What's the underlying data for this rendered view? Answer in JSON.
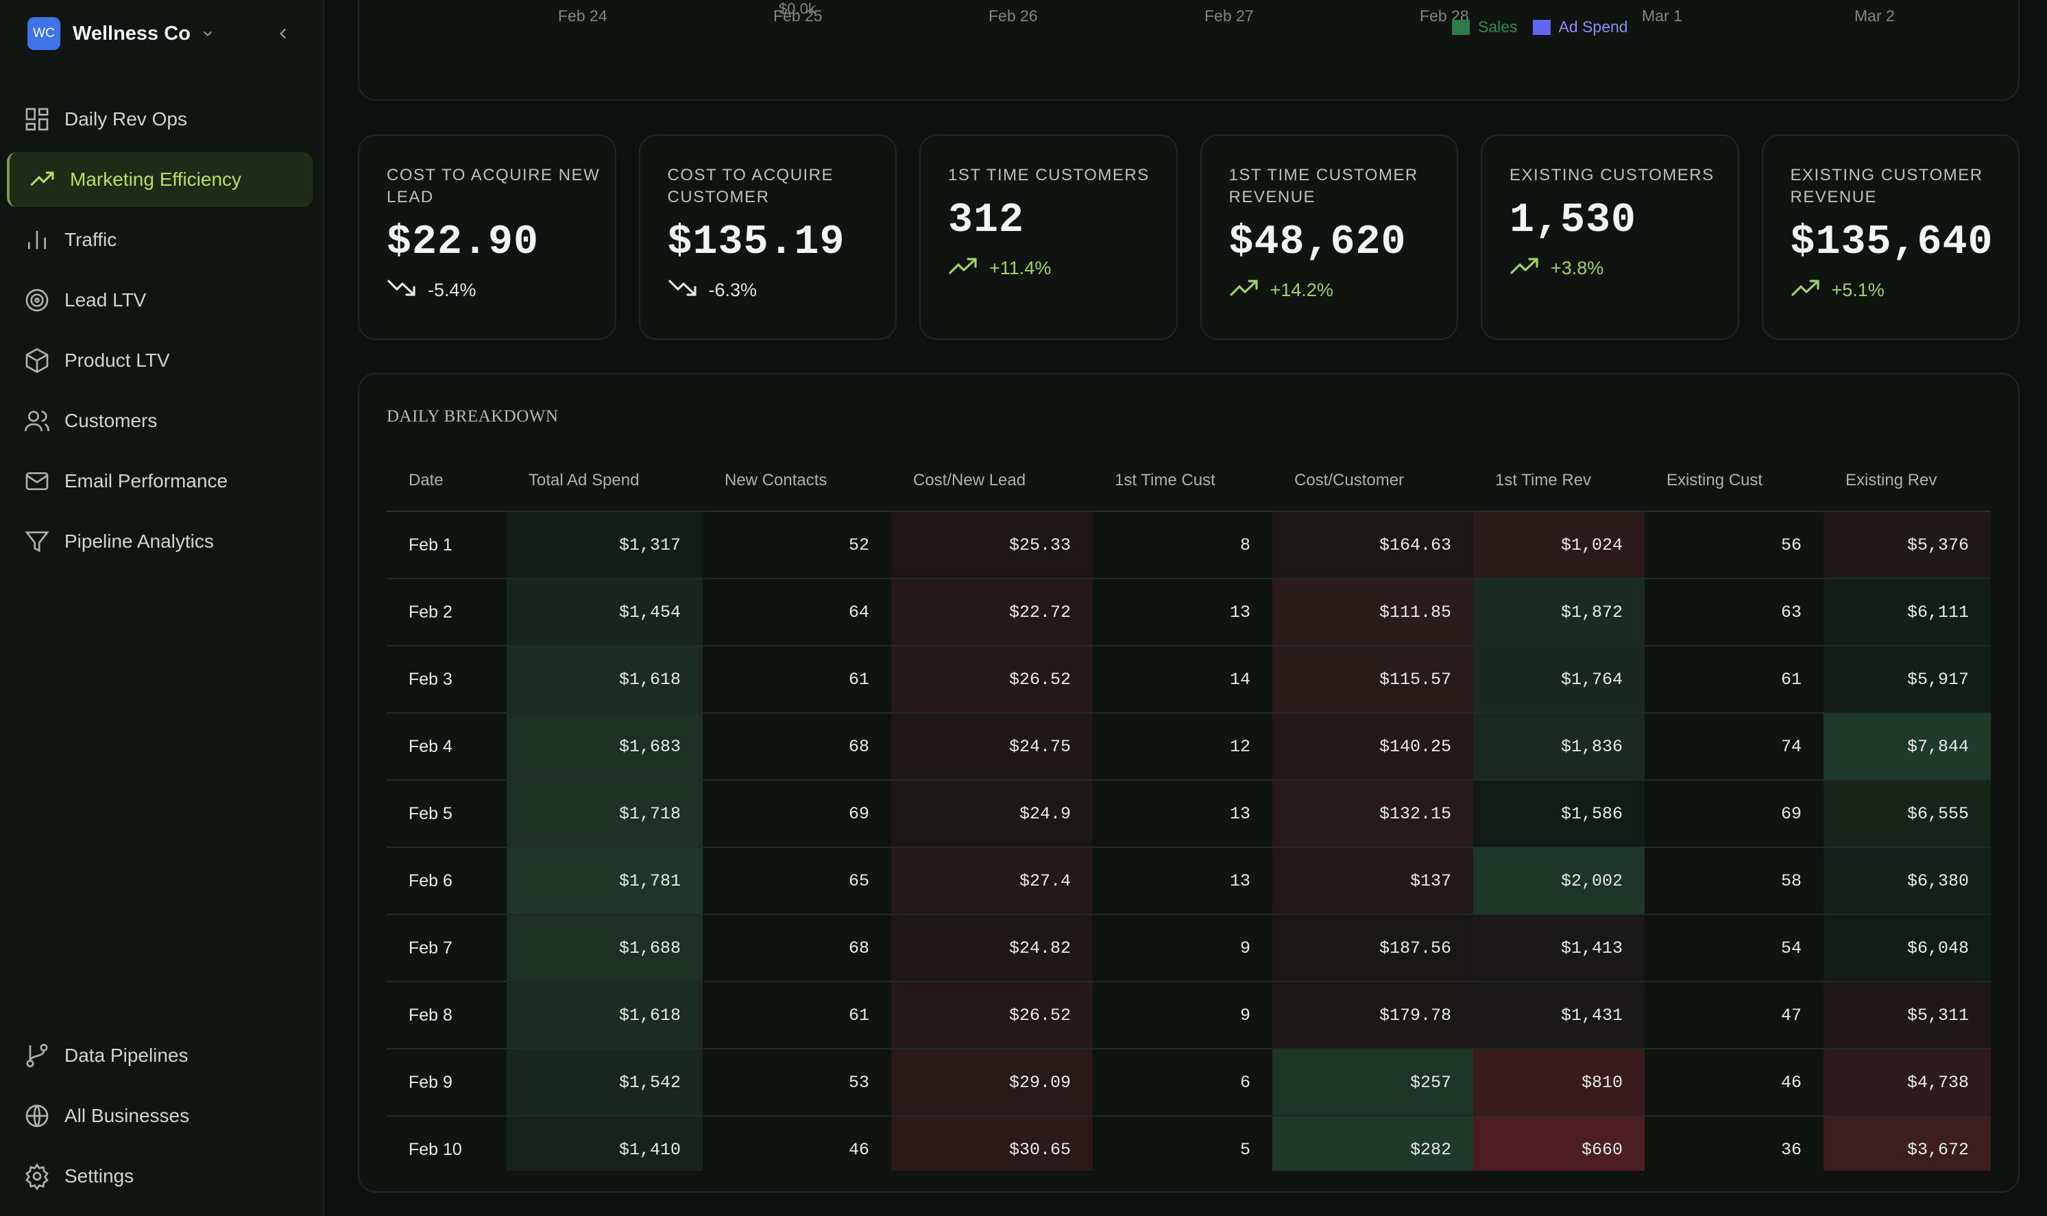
{
  "brand": {
    "initials": "WC",
    "name": "Wellness Co"
  },
  "nav": {
    "items": [
      {
        "label": "Daily Rev Ops",
        "icon": "dashboard-grid-icon"
      },
      {
        "label": "Marketing Efficiency",
        "icon": "trending-up-icon",
        "active": true
      },
      {
        "label": "Traffic",
        "icon": "bar-chart-icon"
      },
      {
        "label": "Lead LTV",
        "icon": "target-icon"
      },
      {
        "label": "Product LTV",
        "icon": "box-icon"
      },
      {
        "label": "Customers",
        "icon": "users-icon"
      },
      {
        "label": "Email Performance",
        "icon": "mail-icon"
      },
      {
        "label": "Pipeline Analytics",
        "icon": "filter-icon"
      }
    ],
    "bottom": [
      {
        "label": "Data Pipelines",
        "icon": "git-branch-icon"
      },
      {
        "label": "All Businesses",
        "icon": "globe-icon"
      },
      {
        "label": "Settings",
        "icon": "settings-gear-icon"
      }
    ]
  },
  "colors": {
    "accent": "#b4e05b",
    "positive": "#9fd36a",
    "negative": "#e4e8e5",
    "sales": "#2f7a4a",
    "ad_spend": "#6366f1"
  },
  "chart": {
    "y_tick_top": "$0.0k",
    "x_labels": [
      "Feb 24",
      "Feb 25",
      "Feb 26",
      "Feb 27",
      "Feb 28",
      "Mar 1",
      "Mar 2"
    ],
    "legend": [
      {
        "label": "Sales",
        "color": "#2f7a4a",
        "text_color": "#2f8a52"
      },
      {
        "label": "Ad Spend",
        "color": "#6366f1",
        "text_color": "#8b8df5"
      }
    ]
  },
  "kpis": [
    {
      "label": "Cost to Acquire New Lead",
      "value": "$22.90",
      "delta": "-5.4%",
      "direction": "down"
    },
    {
      "label": "Cost to Acquire Customer",
      "value": "$135.19",
      "delta": "-6.3%",
      "direction": "down"
    },
    {
      "label": "1st Time Customers",
      "value": "312",
      "delta": "+11.4%",
      "direction": "up"
    },
    {
      "label": "1st Time Customer Revenue",
      "value": "$48,620",
      "delta": "+14.2%",
      "direction": "up"
    },
    {
      "label": "Existing Customers",
      "value": "1,530",
      "delta": "+3.8%",
      "direction": "up"
    },
    {
      "label": "Existing Customer Revenue",
      "value": "$135,640",
      "delta": "+5.1%",
      "direction": "up"
    }
  ],
  "table": {
    "title": "DAILY BREAKDOWN",
    "columns": [
      "Date",
      "Total Ad Spend",
      "New Contacts",
      "Cost/New Lead",
      "1st Time Cust",
      "Cost/Customer",
      "1st Time Rev",
      "Existing Cust",
      "Existing Rev"
    ],
    "rows": [
      [
        "Feb 1",
        "$1,317",
        "52",
        "$25.33",
        "8",
        "$164.63",
        "$1,024",
        "56",
        "$5,376"
      ],
      [
        "Feb 2",
        "$1,454",
        "64",
        "$22.72",
        "13",
        "$111.85",
        "$1,872",
        "63",
        "$6,111"
      ],
      [
        "Feb 3",
        "$1,618",
        "61",
        "$26.52",
        "14",
        "$115.57",
        "$1,764",
        "61",
        "$5,917"
      ],
      [
        "Feb 4",
        "$1,683",
        "68",
        "$24.75",
        "12",
        "$140.25",
        "$1,836",
        "74",
        "$7,844"
      ],
      [
        "Feb 5",
        "$1,718",
        "69",
        "$24.9",
        "13",
        "$132.15",
        "$1,586",
        "69",
        "$6,555"
      ],
      [
        "Feb 6",
        "$1,781",
        "65",
        "$27.4",
        "13",
        "$137",
        "$2,002",
        "58",
        "$6,380"
      ],
      [
        "Feb 7",
        "$1,688",
        "68",
        "$24.82",
        "9",
        "$187.56",
        "$1,413",
        "54",
        "$6,048"
      ],
      [
        "Feb 8",
        "$1,618",
        "61",
        "$26.52",
        "9",
        "$179.78",
        "$1,431",
        "47",
        "$5,311"
      ],
      [
        "Feb 9",
        "$1,542",
        "53",
        "$29.09",
        "6",
        "$257",
        "$810",
        "46",
        "$4,738"
      ],
      [
        "Feb 10",
        "$1,410",
        "46",
        "$30.65",
        "5",
        "$282",
        "$660",
        "36",
        "$3,672"
      ]
    ],
    "heat": [
      [
        null,
        "#141c17",
        null,
        "#1c1616",
        null,
        "#1a1716",
        "#2a1a1a",
        null,
        "#1f1919"
      ],
      [
        null,
        "#18251d",
        null,
        "#241818",
        null,
        "#2c1b1b",
        "#1a2c22",
        null,
        "#141d18"
      ],
      [
        null,
        "#1b2c22",
        null,
        "#241818",
        null,
        "#2a1b1b",
        "#19291f",
        null,
        "#151d18"
      ],
      [
        null,
        "#1c3024",
        null,
        "#1f1818",
        null,
        "#231919",
        "#1a2a21",
        null,
        "#1f3a2a"
      ],
      [
        null,
        "#1d3125",
        null,
        "#1c1818",
        null,
        "#261a1a",
        "#131b16",
        null,
        "#172219"
      ],
      [
        null,
        "#1f3628",
        null,
        "#251818",
        null,
        "#241919",
        "#1d3627",
        null,
        "#16201a"
      ],
      [
        null,
        "#1c3024",
        null,
        "#1f1818",
        null,
        "#1a1817",
        "#1a1818",
        null,
        "#141c17"
      ],
      [
        null,
        "#1b2c22",
        null,
        "#241818",
        null,
        "#1b1817",
        "#1a1818",
        null,
        "#1e1818"
      ],
      [
        null,
        "#19281f",
        null,
        "#2a1919",
        null,
        "#1d3526",
        "#3a1b1d",
        null,
        "#2e1a1c"
      ],
      [
        null,
        "#16221b",
        null,
        "#2c1a1a",
        null,
        "#1f3a2a",
        "#4a1e22",
        null,
        "#3c1d20"
      ]
    ]
  }
}
